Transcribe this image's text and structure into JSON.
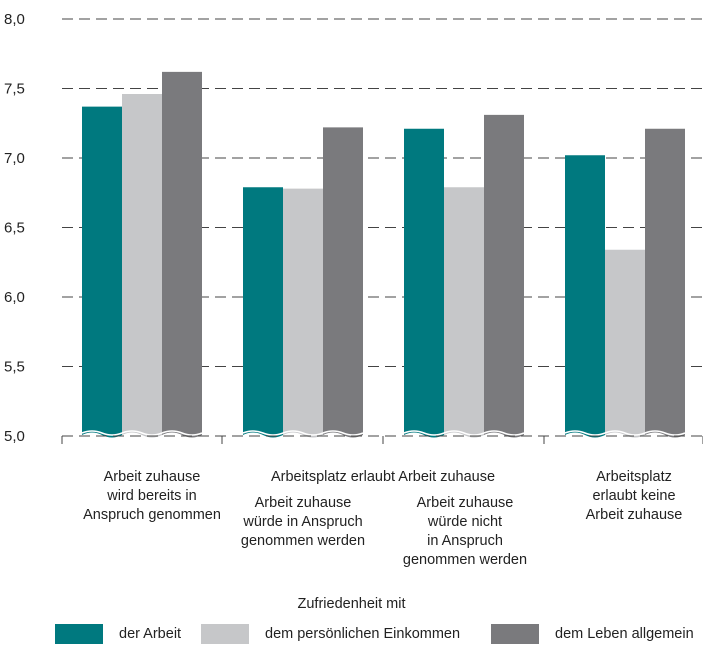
{
  "chart_data": {
    "type": "bar",
    "title": "",
    "xlabel": "",
    "ylabel": "",
    "ylim": [
      5.0,
      8.0
    ],
    "yticks": [
      "8,0",
      "7,5",
      "7,0",
      "6,5",
      "6,0",
      "5,5",
      "5,0"
    ],
    "yticks_values": [
      8.0,
      7.5,
      7.0,
      6.5,
      6.0,
      5.5,
      5.0
    ],
    "grid": "dashed horizontal",
    "legend_position": "bottom",
    "categories": [
      "Arbeit zuhause\nwird bereits in\nAnspruch genommen",
      "Arbeit zuhause\nwürde in Anspruch\ngenommen werden",
      "Arbeit zuhause\nwürde nicht\nin Anspruch\ngenommen werden",
      "Arbeitsplatz\nerlaubt keine\nArbeit zuhause"
    ],
    "group_headers": [
      {
        "text": "Arbeitsplatz erlaubt Arbeit zuhause",
        "spans": [
          1,
          2
        ]
      }
    ],
    "series": [
      {
        "name": "der Arbeit",
        "color": "#00797f",
        "values": [
          7.37,
          6.79,
          7.21,
          7.02
        ]
      },
      {
        "name": "dem persönlichen Einkommen",
        "color": "#c6c7c9",
        "values": [
          7.46,
          6.78,
          6.79,
          6.34
        ]
      },
      {
        "name": "dem Leben allgemein",
        "color": "#7a7a7d",
        "values": [
          7.62,
          7.22,
          7.31,
          7.21
        ]
      }
    ],
    "legend_title": "Zufriedenheit mit"
  }
}
